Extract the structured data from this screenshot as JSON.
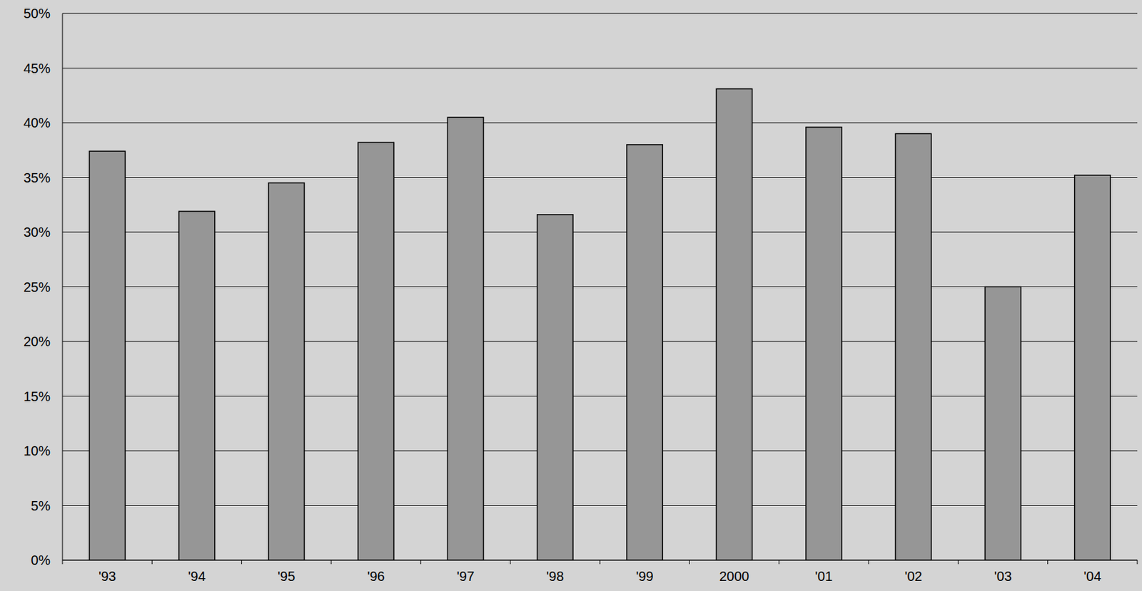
{
  "chart_data": {
    "type": "bar",
    "categories": [
      "'93",
      "'94",
      "'95",
      "'96",
      "'97",
      "'98",
      "'99",
      "2000",
      "'01",
      "'02",
      "'03",
      "'04"
    ],
    "values": [
      37.4,
      31.9,
      34.5,
      38.2,
      40.5,
      31.6,
      38.0,
      43.1,
      39.6,
      39.0,
      25.0,
      35.2
    ],
    "color": "#969696",
    "ylim": [
      0,
      50
    ],
    "yticks": [
      {
        "value": 0,
        "label": "0%"
      },
      {
        "value": 5,
        "label": "5%"
      },
      {
        "value": 10,
        "label": "10%"
      },
      {
        "value": 15,
        "label": "15%"
      },
      {
        "value": 20,
        "label": "20%"
      },
      {
        "value": 25,
        "label": "25%"
      },
      {
        "value": 30,
        "label": "30%"
      },
      {
        "value": 35,
        "label": "35%"
      },
      {
        "value": 40,
        "label": "40%"
      },
      {
        "value": 45,
        "label": "45%"
      },
      {
        "value": 50,
        "label": "50%"
      }
    ],
    "grid": true
  }
}
